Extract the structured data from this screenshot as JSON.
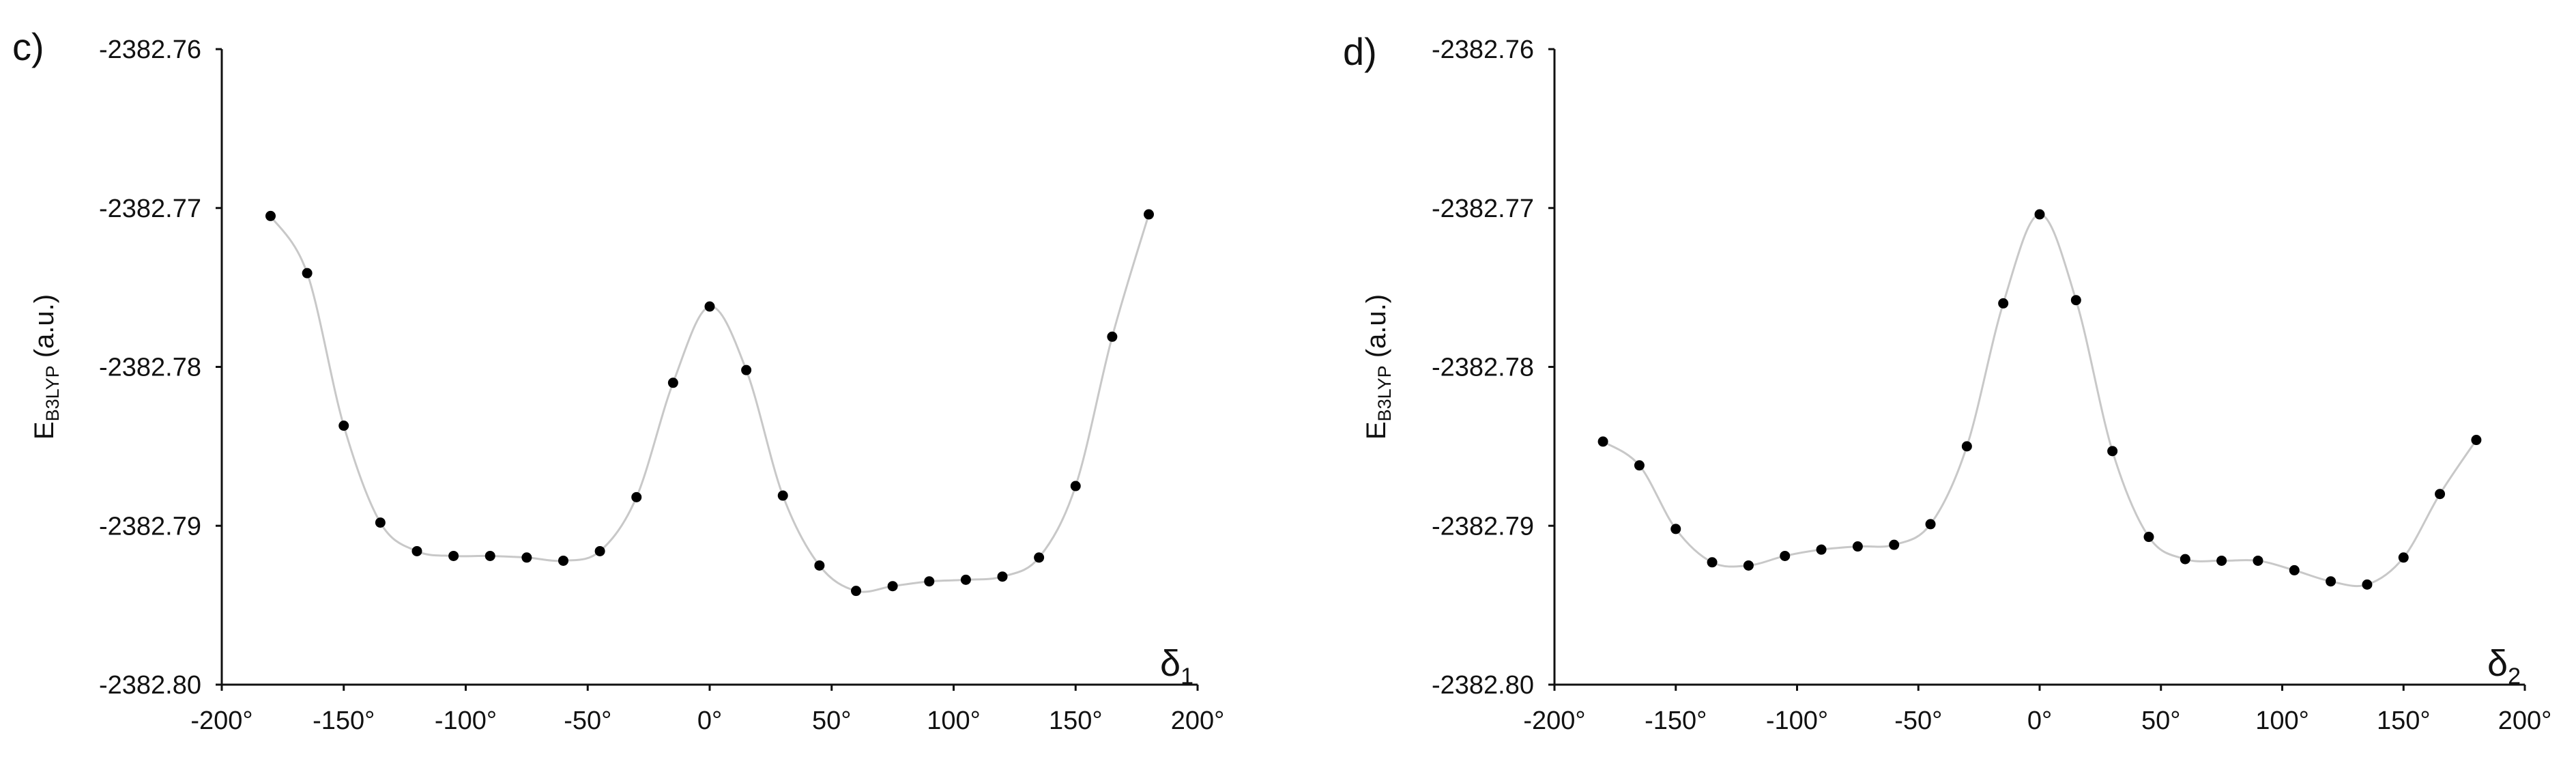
{
  "chart_data": [
    {
      "type": "scatter",
      "panel_label": "c)",
      "ylabel": "E",
      "ylabel_sub": "B3LYP",
      "ylabel_unit": "(a.u.)",
      "xlabel": "δ",
      "xlabel_sub": "1",
      "xlim": [
        -200,
        200
      ],
      "ylim": [
        -2382.8,
        -2382.76
      ],
      "xticks": [
        -200,
        -150,
        -100,
        -50,
        0,
        50,
        100,
        150,
        200
      ],
      "xtick_labels": [
        "-200°",
        "-150°",
        "-100°",
        "-50°",
        "0°",
        "50°",
        "100°",
        "150°",
        "200°"
      ],
      "yticks": [
        -2382.76,
        -2382.77,
        -2382.78,
        -2382.79,
        -2382.8
      ],
      "ytick_labels": [
        "-2382.76",
        "-2382.77",
        "-2382.78",
        "-2382.79",
        "-2382.80"
      ],
      "smooth_line": true,
      "grid": false,
      "series": [
        {
          "x": [
            -180,
            -165,
            -150,
            -135,
            -120,
            -105,
            -90,
            -75,
            -60,
            -45,
            -30,
            -15,
            0,
            15,
            30,
            45,
            60,
            75,
            90,
            105,
            120,
            135,
            150,
            165,
            180
          ],
          "y": [
            -2382.7705,
            -2382.7741,
            -2382.7837,
            -2382.7898,
            -2382.7916,
            -2382.7919,
            -2382.7919,
            -2382.792,
            -2382.7922,
            -2382.7916,
            -2382.7882,
            -2382.781,
            -2382.7762,
            -2382.7802,
            -2382.7881,
            -2382.7925,
            -2382.7941,
            -2382.7938,
            -2382.7935,
            -2382.7934,
            -2382.7932,
            -2382.792,
            -2382.7875,
            -2382.7781,
            -2382.7704
          ]
        }
      ]
    },
    {
      "type": "scatter",
      "panel_label": "d)",
      "ylabel": "E",
      "ylabel_sub": "B3LYP",
      "ylabel_unit": "(a.u.)",
      "xlabel": "δ",
      "xlabel_sub": "2",
      "xlim": [
        -200,
        200
      ],
      "ylim": [
        -2382.8,
        -2382.76
      ],
      "xticks": [
        -200,
        -150,
        -100,
        -50,
        0,
        50,
        100,
        150,
        200
      ],
      "xtick_labels": [
        "-200°",
        "-150°",
        "-100°",
        "-50°",
        "0°",
        "50°",
        "100°",
        "150°",
        "200°"
      ],
      "yticks": [
        -2382.76,
        -2382.77,
        -2382.78,
        -2382.79,
        -2382.8
      ],
      "ytick_labels": [
        "-2382.76",
        "-2382.77",
        "-2382.78",
        "-2382.79",
        "-2382.80"
      ],
      "smooth_line": true,
      "grid": false,
      "series": [
        {
          "x": [
            -180,
            -165,
            -150,
            -135,
            -120,
            -105,
            -90,
            -75,
            -60,
            -45,
            -30,
            -15,
            0,
            15,
            30,
            45,
            60,
            75,
            90,
            105,
            120,
            135,
            150,
            165,
            180
          ],
          "y": [
            -2382.7847,
            -2382.7862,
            -2382.7902,
            -2382.7923,
            -2382.7925,
            -2382.7919,
            -2382.7915,
            -2382.7913,
            -2382.7912,
            -2382.7899,
            -2382.785,
            -2382.776,
            -2382.7704,
            -2382.7758,
            -2382.7853,
            -2382.7907,
            -2382.7921,
            -2382.7922,
            -2382.7922,
            -2382.7928,
            -2382.7935,
            -2382.7937,
            -2382.792,
            -2382.788,
            -2382.7846
          ]
        }
      ]
    }
  ]
}
